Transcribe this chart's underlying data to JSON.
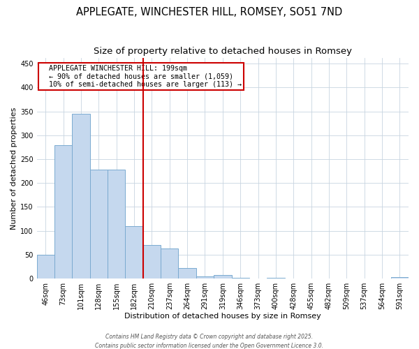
{
  "title": "APPLEGATE, WINCHESTER HILL, ROMSEY, SO51 7ND",
  "subtitle": "Size of property relative to detached houses in Romsey",
  "xlabel": "Distribution of detached houses by size in Romsey",
  "ylabel": "Number of detached properties",
  "categories": [
    "46sqm",
    "73sqm",
    "101sqm",
    "128sqm",
    "155sqm",
    "182sqm",
    "210sqm",
    "237sqm",
    "264sqm",
    "291sqm",
    "319sqm",
    "346sqm",
    "373sqm",
    "400sqm",
    "428sqm",
    "455sqm",
    "482sqm",
    "509sqm",
    "537sqm",
    "564sqm",
    "591sqm"
  ],
  "values": [
    50,
    280,
    345,
    228,
    228,
    110,
    70,
    63,
    22,
    4,
    7,
    1,
    0,
    2,
    0,
    0,
    0,
    0,
    0,
    0,
    3
  ],
  "bar_color": "#c5d8ee",
  "bar_edge_color": "#7aaad0",
  "vline_x": 6.0,
  "vline_color": "#cc0000",
  "annotation_text": "  APPLEGATE WINCHESTER HILL: 199sqm  \n  ← 90% of detached houses are smaller (1,059)\n  10% of semi-detached houses are larger (113) →",
  "annotation_box_color": "#ffffff",
  "annotation_box_edge": "#cc0000",
  "ylim": [
    0,
    462
  ],
  "yticks": [
    0,
    50,
    100,
    150,
    200,
    250,
    300,
    350,
    400,
    450
  ],
  "title_fontsize": 10.5,
  "subtitle_fontsize": 9.5,
  "axis_fontsize": 8,
  "tick_fontsize": 7,
  "footnote_line1": "Contains HM Land Registry data © Crown copyright and database right 2025.",
  "footnote_line2": "Contains public sector information licensed under the Open Government Licence 3.0.",
  "background_color": "#ffffff",
  "grid_color": "#c8d4e0"
}
